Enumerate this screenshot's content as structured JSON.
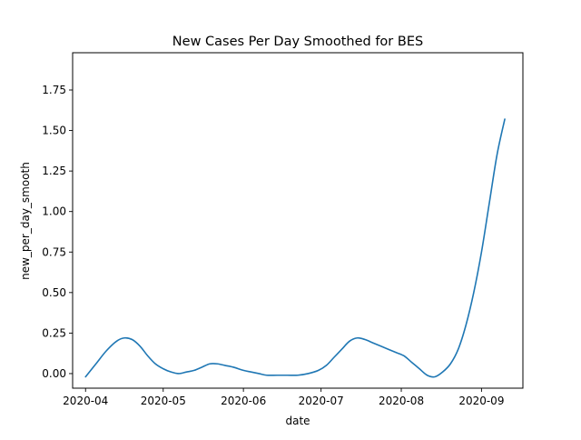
{
  "chart_data": {
    "type": "line",
    "title": "New Cases Per Day Smoothed for BES",
    "xlabel": "date",
    "ylabel": "new_per_day_smooth",
    "x_axis_type": "date",
    "xlim": [
      "2020-03-27",
      "2020-09-17"
    ],
    "ylim": [
      -0.09,
      1.98
    ],
    "x_ticks": [
      "2020-04-01",
      "2020-05-01",
      "2020-06-01",
      "2020-07-01",
      "2020-08-01",
      "2020-09-01"
    ],
    "x_tick_labels": [
      "2020-04",
      "2020-05",
      "2020-06",
      "2020-07",
      "2020-08",
      "2020-09"
    ],
    "y_ticks": [
      0.0,
      0.25,
      0.5,
      0.75,
      1.0,
      1.25,
      1.5,
      1.75
    ],
    "y_tick_labels": [
      "0.00",
      "0.25",
      "0.50",
      "0.75",
      "1.00",
      "1.25",
      "1.50",
      "1.75"
    ],
    "grid": false,
    "legend": "none",
    "series": [
      {
        "color": "#1f77b4",
        "x": [
          "2020-04-01",
          "2020-04-05",
          "2020-04-09",
          "2020-04-13",
          "2020-04-16",
          "2020-04-19",
          "2020-04-22",
          "2020-04-25",
          "2020-04-28",
          "2020-05-01",
          "2020-05-04",
          "2020-05-07",
          "2020-05-10",
          "2020-05-13",
          "2020-05-16",
          "2020-05-19",
          "2020-05-22",
          "2020-05-25",
          "2020-05-28",
          "2020-06-01",
          "2020-06-04",
          "2020-06-07",
          "2020-06-10",
          "2020-06-14",
          "2020-06-18",
          "2020-06-22",
          "2020-06-26",
          "2020-06-30",
          "2020-07-03",
          "2020-07-06",
          "2020-07-09",
          "2020-07-12",
          "2020-07-15",
          "2020-07-18",
          "2020-07-21",
          "2020-07-24",
          "2020-07-27",
          "2020-07-30",
          "2020-08-02",
          "2020-08-05",
          "2020-08-08",
          "2020-08-11",
          "2020-08-14",
          "2020-08-17",
          "2020-08-20",
          "2020-08-23",
          "2020-08-26",
          "2020-08-29",
          "2020-09-01",
          "2020-09-04",
          "2020-09-07",
          "2020-09-10"
        ],
        "values": [
          -0.02,
          0.06,
          0.14,
          0.2,
          0.22,
          0.21,
          0.17,
          0.11,
          0.06,
          0.03,
          0.01,
          0.0,
          0.01,
          0.02,
          0.04,
          0.06,
          0.06,
          0.05,
          0.04,
          0.02,
          0.01,
          0.0,
          -0.01,
          -0.01,
          -0.01,
          -0.01,
          0.0,
          0.02,
          0.05,
          0.1,
          0.15,
          0.2,
          0.22,
          0.21,
          0.19,
          0.17,
          0.15,
          0.13,
          0.11,
          0.07,
          0.03,
          -0.01,
          -0.02,
          0.01,
          0.06,
          0.15,
          0.3,
          0.5,
          0.75,
          1.05,
          1.35,
          1.57
        ]
      }
    ]
  }
}
